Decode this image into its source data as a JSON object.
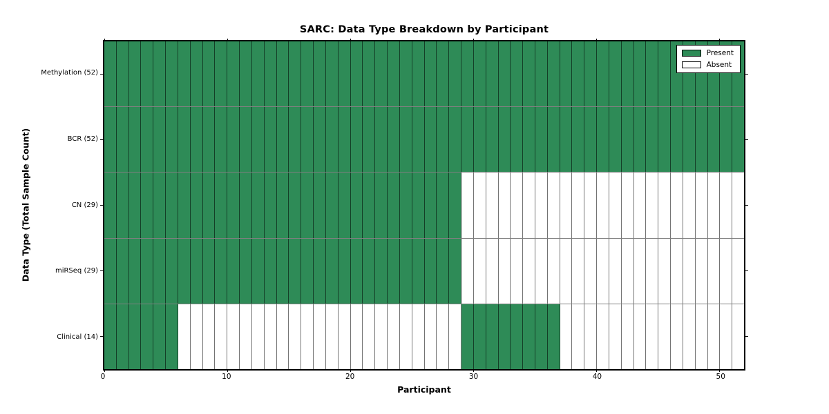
{
  "chart_data": {
    "type": "heatmap",
    "title": "SARC: Data Type Breakdown by Participant",
    "xlabel": "Participant",
    "ylabel": "Data Type (Total Sample Count)",
    "x_range": [
      0,
      52
    ],
    "x_ticks": [
      0,
      10,
      20,
      30,
      40,
      50
    ],
    "n_participants": 52,
    "grid": false,
    "legend_position": "upper right",
    "rows": [
      {
        "label": "Methylation (52)",
        "name": "Methylation",
        "total": 52,
        "present_ranges": [
          [
            0,
            52
          ]
        ]
      },
      {
        "label": "BCR (52)",
        "name": "BCR",
        "total": 52,
        "present_ranges": [
          [
            0,
            52
          ]
        ]
      },
      {
        "label": "CN (29)",
        "name": "CN",
        "total": 29,
        "present_ranges": [
          [
            0,
            29
          ]
        ]
      },
      {
        "label": "miRSeq (29)",
        "name": "miRSeq",
        "total": 29,
        "present_ranges": [
          [
            0,
            29
          ]
        ]
      },
      {
        "label": "Clinical (14)",
        "name": "Clinical",
        "total": 14,
        "present_ranges": [
          [
            0,
            6
          ],
          [
            29,
            37
          ]
        ]
      }
    ],
    "legend": [
      {
        "label": "Present",
        "color": "#2e8b57"
      },
      {
        "label": "Absent",
        "color": "#ffffff"
      }
    ],
    "colors": {
      "present": "#2e8b57",
      "absent": "#ffffff",
      "cell_border": "#000000",
      "frame": "#000000",
      "background": "#ffffff"
    }
  }
}
